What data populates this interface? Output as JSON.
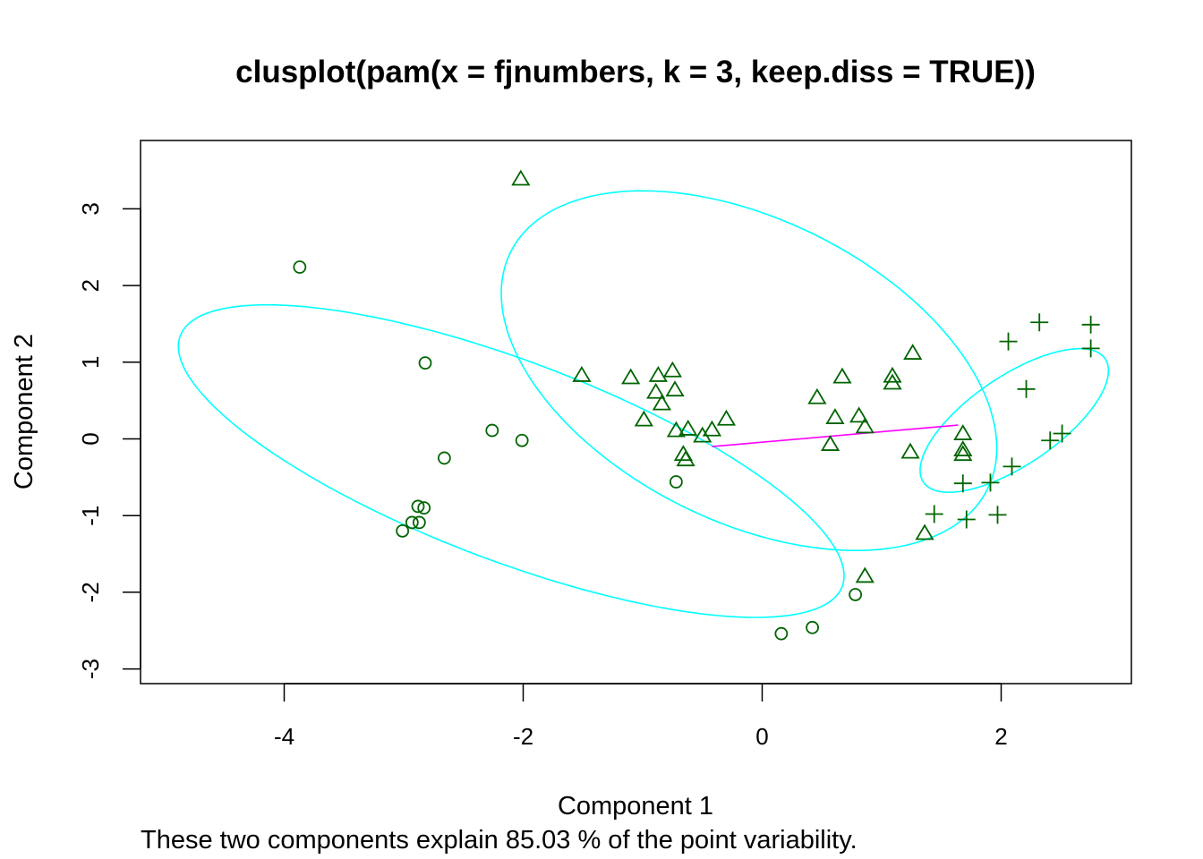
{
  "chart_data": {
    "type": "scatter",
    "title": "clusplot(pam(x = fjnumbers, k = 3, keep.diss = TRUE))",
    "xlabel": "Component 1",
    "ylabel": "Component 2",
    "caption": "These two components explain 85.03 % of the point variability.",
    "xlim": [
      -5.0,
      3.2
    ],
    "ylim": [
      -3.3,
      3.9
    ],
    "xticks": [
      -4,
      -2,
      0,
      2
    ],
    "xtick_labels": [
      "-4",
      "-2",
      "0",
      "2"
    ],
    "yticks": [
      -3,
      -2,
      -1,
      0,
      1,
      2,
      3
    ],
    "ytick_labels": [
      "-3",
      "-2",
      "-1",
      "0",
      "1",
      "2",
      "3"
    ],
    "grid": false,
    "legend": "none",
    "colors": {
      "points": "#006400",
      "ellipse": "#00ffff",
      "connector": "#ff00ff",
      "frame": "#000000"
    },
    "series": [
      {
        "marker": "circle",
        "points": [
          [
            -3.87,
            2.24
          ],
          [
            -2.82,
            0.99
          ],
          [
            -2.26,
            0.11
          ],
          [
            -2.01,
            -0.02
          ],
          [
            -2.66,
            -0.25
          ],
          [
            -2.88,
            -0.88
          ],
          [
            -2.83,
            -0.9
          ],
          [
            -2.93,
            -1.09
          ],
          [
            -2.87,
            -1.09
          ],
          [
            -3.01,
            -1.2
          ],
          [
            -0.72,
            -0.56
          ],
          [
            0.78,
            -2.03
          ],
          [
            0.42,
            -2.46
          ],
          [
            0.16,
            -2.54
          ]
        ]
      },
      {
        "marker": "triangle",
        "points": [
          [
            -2.02,
            3.38
          ],
          [
            -1.51,
            0.82
          ],
          [
            -1.1,
            0.79
          ],
          [
            -0.87,
            0.82
          ],
          [
            -0.75,
            0.88
          ],
          [
            -0.89,
            0.6
          ],
          [
            -0.73,
            0.63
          ],
          [
            -0.84,
            0.45
          ],
          [
            -0.99,
            0.24
          ],
          [
            -0.72,
            0.1
          ],
          [
            -0.62,
            0.12
          ],
          [
            -0.5,
            0.03
          ],
          [
            -0.42,
            0.11
          ],
          [
            -0.3,
            0.25
          ],
          [
            -0.66,
            -0.21
          ],
          [
            -0.64,
            -0.28
          ],
          [
            0.46,
            0.53
          ],
          [
            0.67,
            0.8
          ],
          [
            0.61,
            0.27
          ],
          [
            0.81,
            0.29
          ],
          [
            0.86,
            0.15
          ],
          [
            0.57,
            -0.08
          ],
          [
            1.09,
            0.81
          ],
          [
            1.09,
            0.72
          ],
          [
            1.26,
            1.11
          ],
          [
            1.24,
            -0.18
          ],
          [
            1.36,
            -1.24
          ],
          [
            0.86,
            -1.8
          ],
          [
            1.68,
            0.06
          ],
          [
            1.68,
            -0.15
          ],
          [
            1.68,
            -0.21
          ]
        ]
      },
      {
        "marker": "plus",
        "points": [
          [
            2.06,
            1.27
          ],
          [
            2.32,
            1.52
          ],
          [
            2.75,
            1.49
          ],
          [
            2.75,
            1.18
          ],
          [
            2.21,
            0.65
          ],
          [
            2.51,
            0.07
          ],
          [
            2.41,
            -0.02
          ],
          [
            2.09,
            -0.36
          ],
          [
            1.91,
            -0.57
          ],
          [
            1.68,
            -0.58
          ],
          [
            1.44,
            -0.98
          ],
          [
            1.71,
            -1.05
          ],
          [
            1.97,
            -0.99
          ]
        ]
      }
    ],
    "ellipses": [
      {
        "center": [
          -2.1,
          -0.29
        ],
        "semi_axes": [
          3.24,
          1.19
        ],
        "angle_deg": -33.3
      },
      {
        "center": [
          -0.11,
          0.89
        ],
        "semi_axes": [
          2.66,
          1.65
        ],
        "angle_deg": -53.0
      },
      {
        "center": [
          2.11,
          0.24
        ],
        "semi_axes": [
          1.13,
          0.47
        ],
        "angle_deg": 52.0
      }
    ],
    "connectors": [
      {
        "from": [
          -0.42,
          -0.1
        ],
        "to": [
          1.64,
          0.18
        ]
      }
    ]
  }
}
